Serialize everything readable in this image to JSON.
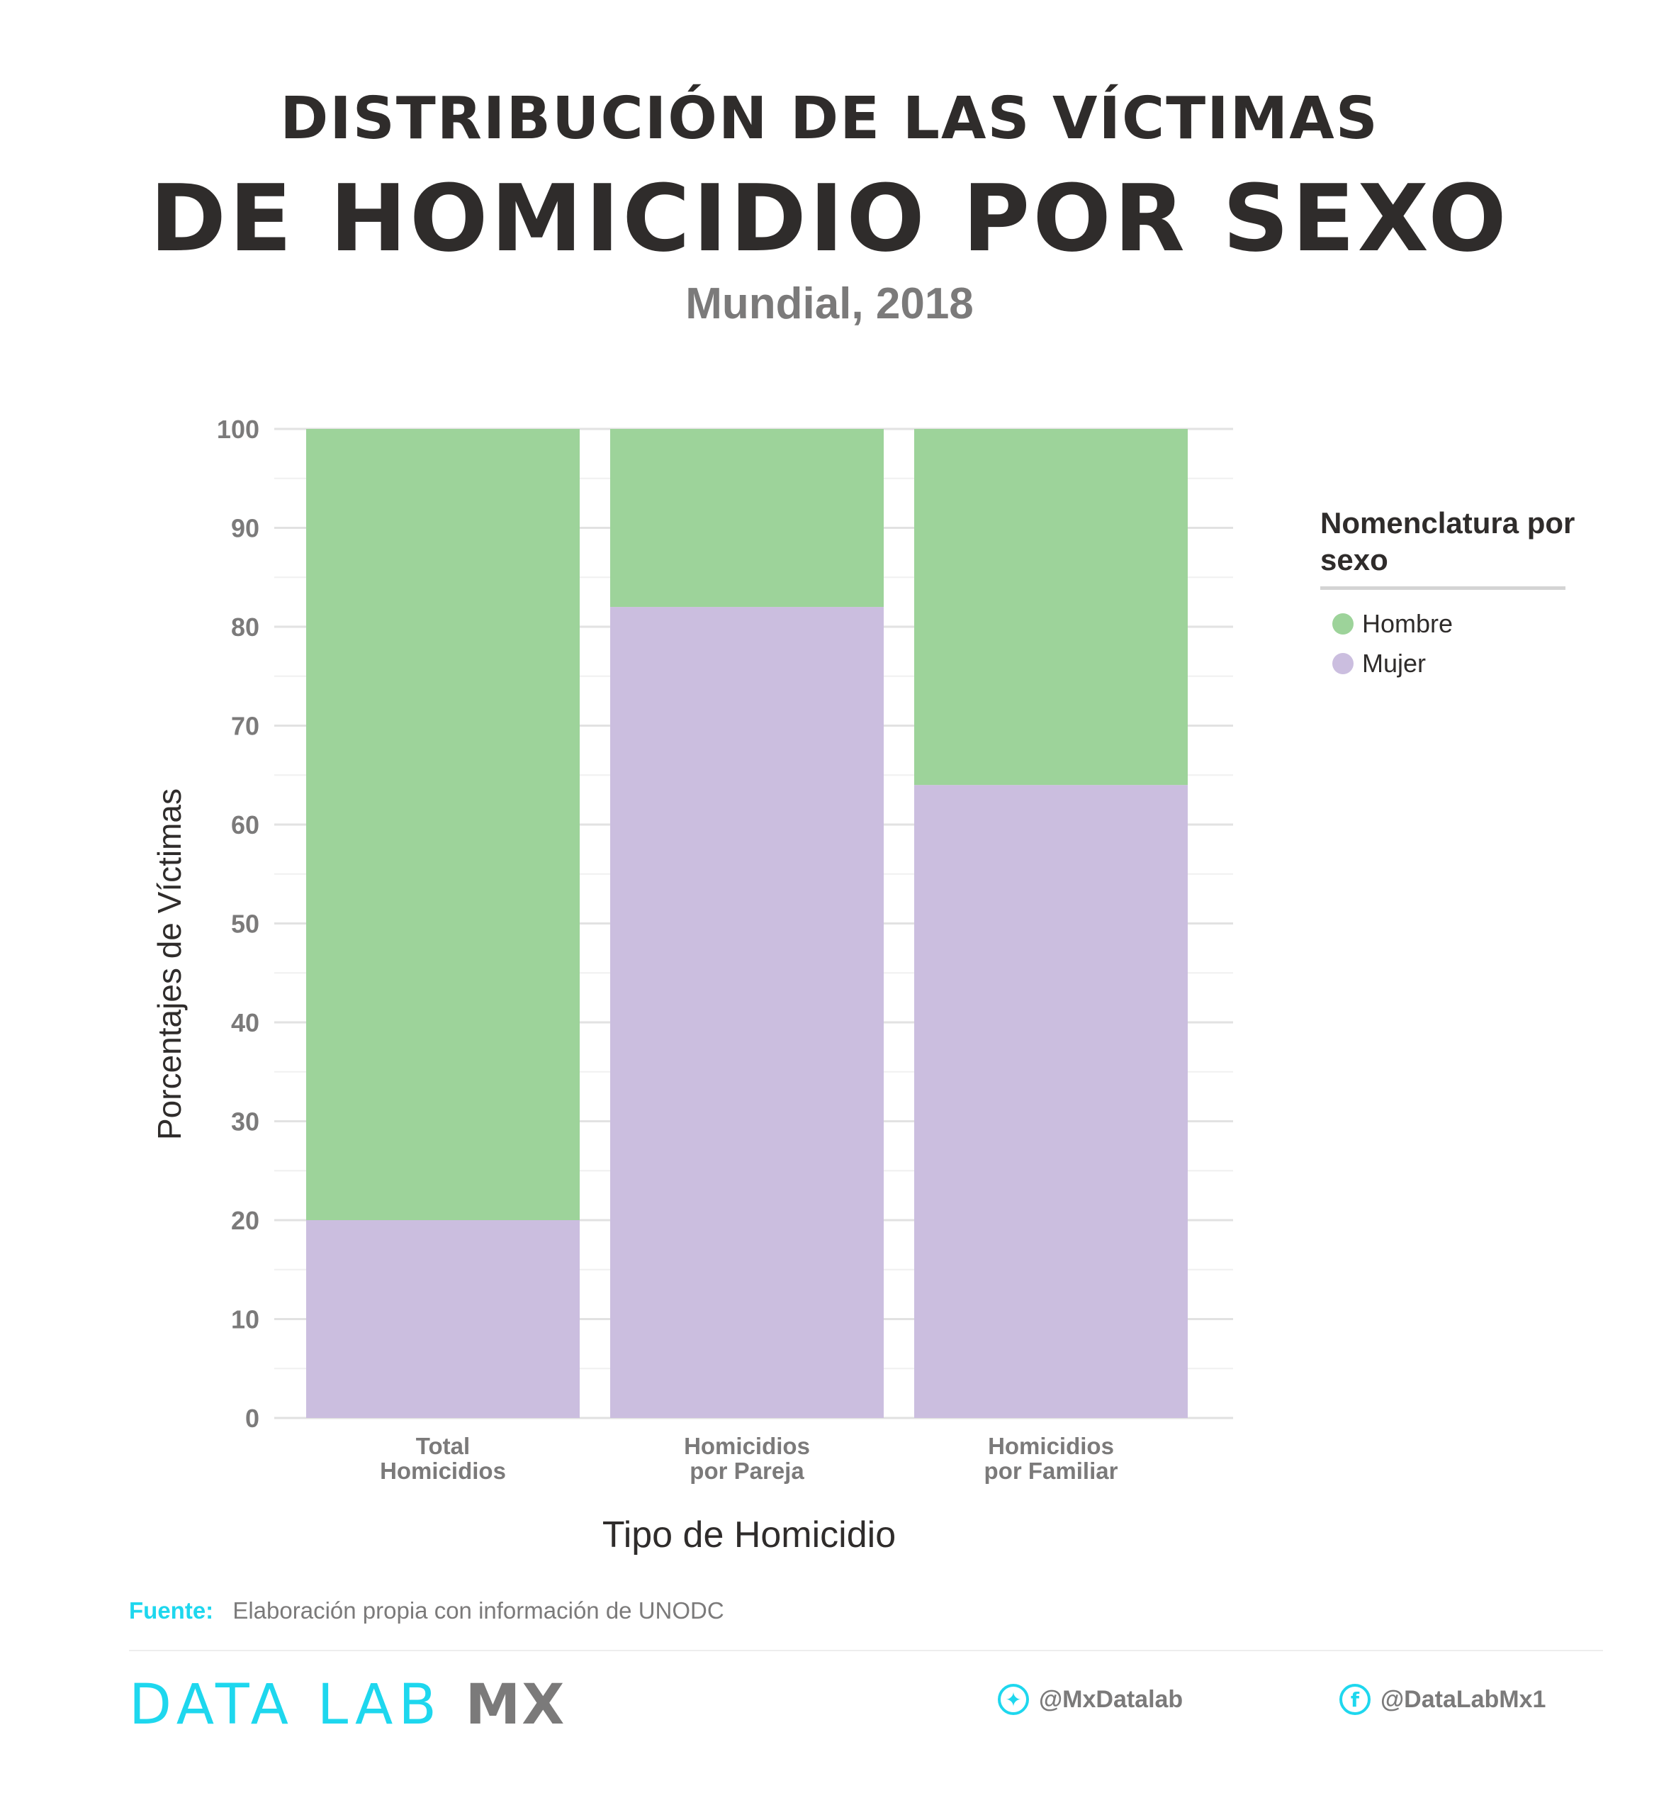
{
  "header": {
    "title_line1": "DISTRIBUCIÓN DE LAS VÍCTIMAS",
    "title_line2": "DE HOMICIDIO POR SEXO",
    "subtitle": "Mundial, 2018"
  },
  "chart_data": {
    "type": "bar",
    "stacked": true,
    "categories": [
      [
        "Total",
        "Homicidios"
      ],
      [
        "Homicidios",
        "por Pareja"
      ],
      [
        "Homicidios",
        "por Familiar"
      ]
    ],
    "series": [
      {
        "name": "Mujer",
        "values": [
          20,
          82,
          64
        ],
        "color": "#cbbedf"
      },
      {
        "name": "Hombre",
        "values": [
          80,
          18,
          36
        ],
        "color": "#9dd39a"
      }
    ],
    "xlabel": "Tipo de Homicidio",
    "ylabel": "Porcentajes de Víctimas",
    "ylim": [
      0,
      100
    ],
    "yticks": [
      0,
      10,
      20,
      30,
      40,
      50,
      60,
      70,
      80,
      90,
      100
    ],
    "grid": true,
    "legend_position": "right"
  },
  "legend": {
    "title": "Nomenclatura por sexo",
    "items": [
      {
        "label": "Hombre",
        "color": "#9dd39a"
      },
      {
        "label": "Mujer",
        "color": "#cbbedf"
      }
    ]
  },
  "source": {
    "label": "Fuente:",
    "text": "Elaboración propia con información de UNODC"
  },
  "footer": {
    "brand_main": "DATA LAB",
    "brand_suffix": "MX",
    "twitter_icon": "twitter-icon",
    "twitter": "@MxDatalab",
    "facebook_icon": "facebook-icon",
    "facebook": "@DataLabMx1",
    "accent_color": "#1ed7ee"
  }
}
